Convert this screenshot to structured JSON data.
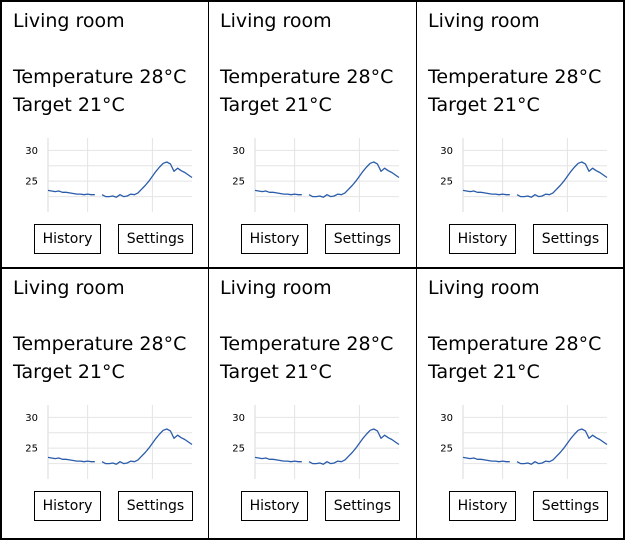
{
  "tiles": [
    {
      "room": "Living room",
      "temperature": "Temperature 28°C",
      "target": "Target 21°C",
      "history_label": "History",
      "settings_label": "Settings"
    },
    {
      "room": "Living room",
      "temperature": "Temperature 28°C",
      "target": "Target 21°C",
      "history_label": "History",
      "settings_label": "Settings"
    },
    {
      "room": "Living room",
      "temperature": "Temperature 28°C",
      "target": "Target 21°C",
      "history_label": "History",
      "settings_label": "Settings"
    },
    {
      "room": "Living room",
      "temperature": "Temperature 28°C",
      "target": "Target 21°C",
      "history_label": "History",
      "settings_label": "Settings"
    },
    {
      "room": "Living room",
      "temperature": "Temperature 28°C",
      "target": "Target 21°C",
      "history_label": "History",
      "settings_label": "Settings"
    },
    {
      "room": "Living room",
      "temperature": "Temperature 28°C",
      "target": "Target 21°C",
      "history_label": "History",
      "settings_label": "Settings"
    }
  ],
  "chart_data": {
    "type": "line",
    "title": "",
    "xlabel": "",
    "ylabel": "",
    "ylim": [
      20,
      32
    ],
    "yticks": [
      25,
      30
    ],
    "grid": true,
    "line_color": "#2a5caa",
    "series": [
      {
        "segments": [
          [
            [
              0,
              23.5
            ],
            [
              1,
              23.4
            ],
            [
              2,
              23.3
            ],
            [
              3,
              23.4
            ],
            [
              4,
              23.2
            ],
            [
              5,
              23.2
            ],
            [
              6,
              23.1
            ],
            [
              7,
              23.0
            ],
            [
              8,
              22.9
            ],
            [
              9,
              22.9
            ],
            [
              10,
              22.8
            ],
            [
              11,
              22.9
            ],
            [
              12,
              22.8
            ],
            [
              13,
              22.8
            ]
          ],
          [
            [
              15,
              22.8
            ],
            [
              16,
              22.5
            ],
            [
              17,
              22.5
            ],
            [
              18,
              22.6
            ],
            [
              19,
              22.4
            ],
            [
              20,
              22.8
            ],
            [
              21,
              22.5
            ],
            [
              22,
              22.6
            ],
            [
              23,
              22.9
            ],
            [
              24,
              22.8
            ],
            [
              25,
              23.1
            ],
            [
              26,
              23.7
            ],
            [
              27,
              24.3
            ],
            [
              28,
              25.0
            ],
            [
              29,
              25.8
            ],
            [
              30,
              26.6
            ],
            [
              31,
              27.3
            ],
            [
              32,
              27.9
            ],
            [
              33,
              28.1
            ],
            [
              34,
              27.8
            ],
            [
              35,
              26.6
            ],
            [
              36,
              27.1
            ],
            [
              37,
              26.7
            ],
            [
              38,
              26.4
            ],
            [
              39,
              26.0
            ],
            [
              40,
              25.6
            ]
          ]
        ]
      }
    ]
  }
}
